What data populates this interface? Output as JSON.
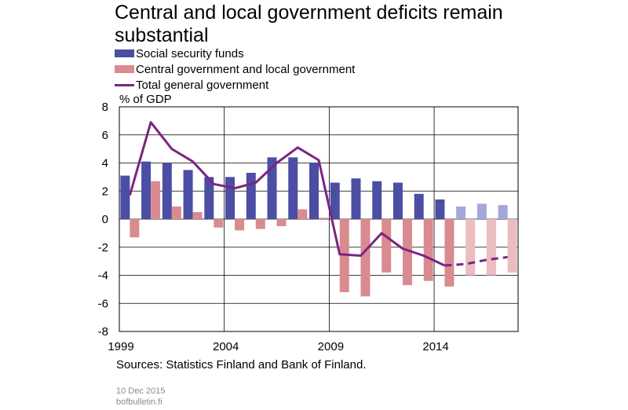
{
  "colors": {
    "social": "#4b4ea3",
    "social_forecast": "#a4a7d9",
    "central": "#d98b90",
    "central_forecast": "#ebbcc0",
    "total": "#7b2483",
    "grid": "#000000"
  },
  "title": "Central and local government deficits remain substantial",
  "legend": {
    "social": "Social security funds",
    "central": "Central government and local government",
    "total": "Total general government"
  },
  "unit": "% of GDP",
  "source": "Sources: Statistics Finland and Bank of Finland.",
  "footer": {
    "date": "10 Dec 2015",
    "site": "bofbulletin.fi"
  },
  "chart_data": {
    "type": "bar",
    "title": "Central and local government deficits remain substantial",
    "ylabel": "% of GDP",
    "ylim": [
      -8,
      8
    ],
    "yticks": [
      8,
      6,
      4,
      2,
      0,
      -2,
      -4,
      -6,
      -8
    ],
    "ytick_labels": [
      "8",
      "6",
      "4",
      "2",
      "0",
      "-2",
      "-4",
      "-6",
      "-8"
    ],
    "xtick_labels": [
      "1999",
      "2004",
      "2009",
      "2014"
    ],
    "categories": [
      "1999",
      "2000",
      "2001",
      "2002",
      "2003",
      "2004",
      "2005",
      "2006",
      "2007",
      "2008",
      "2009",
      "2010",
      "2011",
      "2012",
      "2013",
      "2014",
      "2015",
      "2016",
      "2017"
    ],
    "forecast_from": "2015",
    "series": [
      {
        "name": "Social security funds",
        "type": "bar",
        "values": [
          3.1,
          4.1,
          4.0,
          3.5,
          3.0,
          3.0,
          3.3,
          4.4,
          4.4,
          4.0,
          2.6,
          2.9,
          2.7,
          2.6,
          1.8,
          1.4,
          0.9,
          1.1,
          1.0
        ]
      },
      {
        "name": "Central government and local government",
        "type": "bar",
        "values": [
          -1.3,
          2.7,
          0.9,
          0.5,
          -0.6,
          -0.8,
          -0.7,
          -0.5,
          0.7,
          0.1,
          -5.2,
          -5.5,
          -3.8,
          -4.7,
          -4.4,
          -4.8,
          -4.0,
          -4.0,
          -3.8
        ]
      },
      {
        "name": "Total general government",
        "type": "line",
        "values": [
          1.7,
          6.9,
          5.0,
          4.1,
          2.5,
          2.2,
          2.6,
          4.0,
          5.1,
          4.2,
          -2.5,
          -2.6,
          -1.0,
          -2.1,
          -2.6,
          -3.3,
          -3.2,
          -2.9,
          -2.7
        ]
      }
    ]
  }
}
